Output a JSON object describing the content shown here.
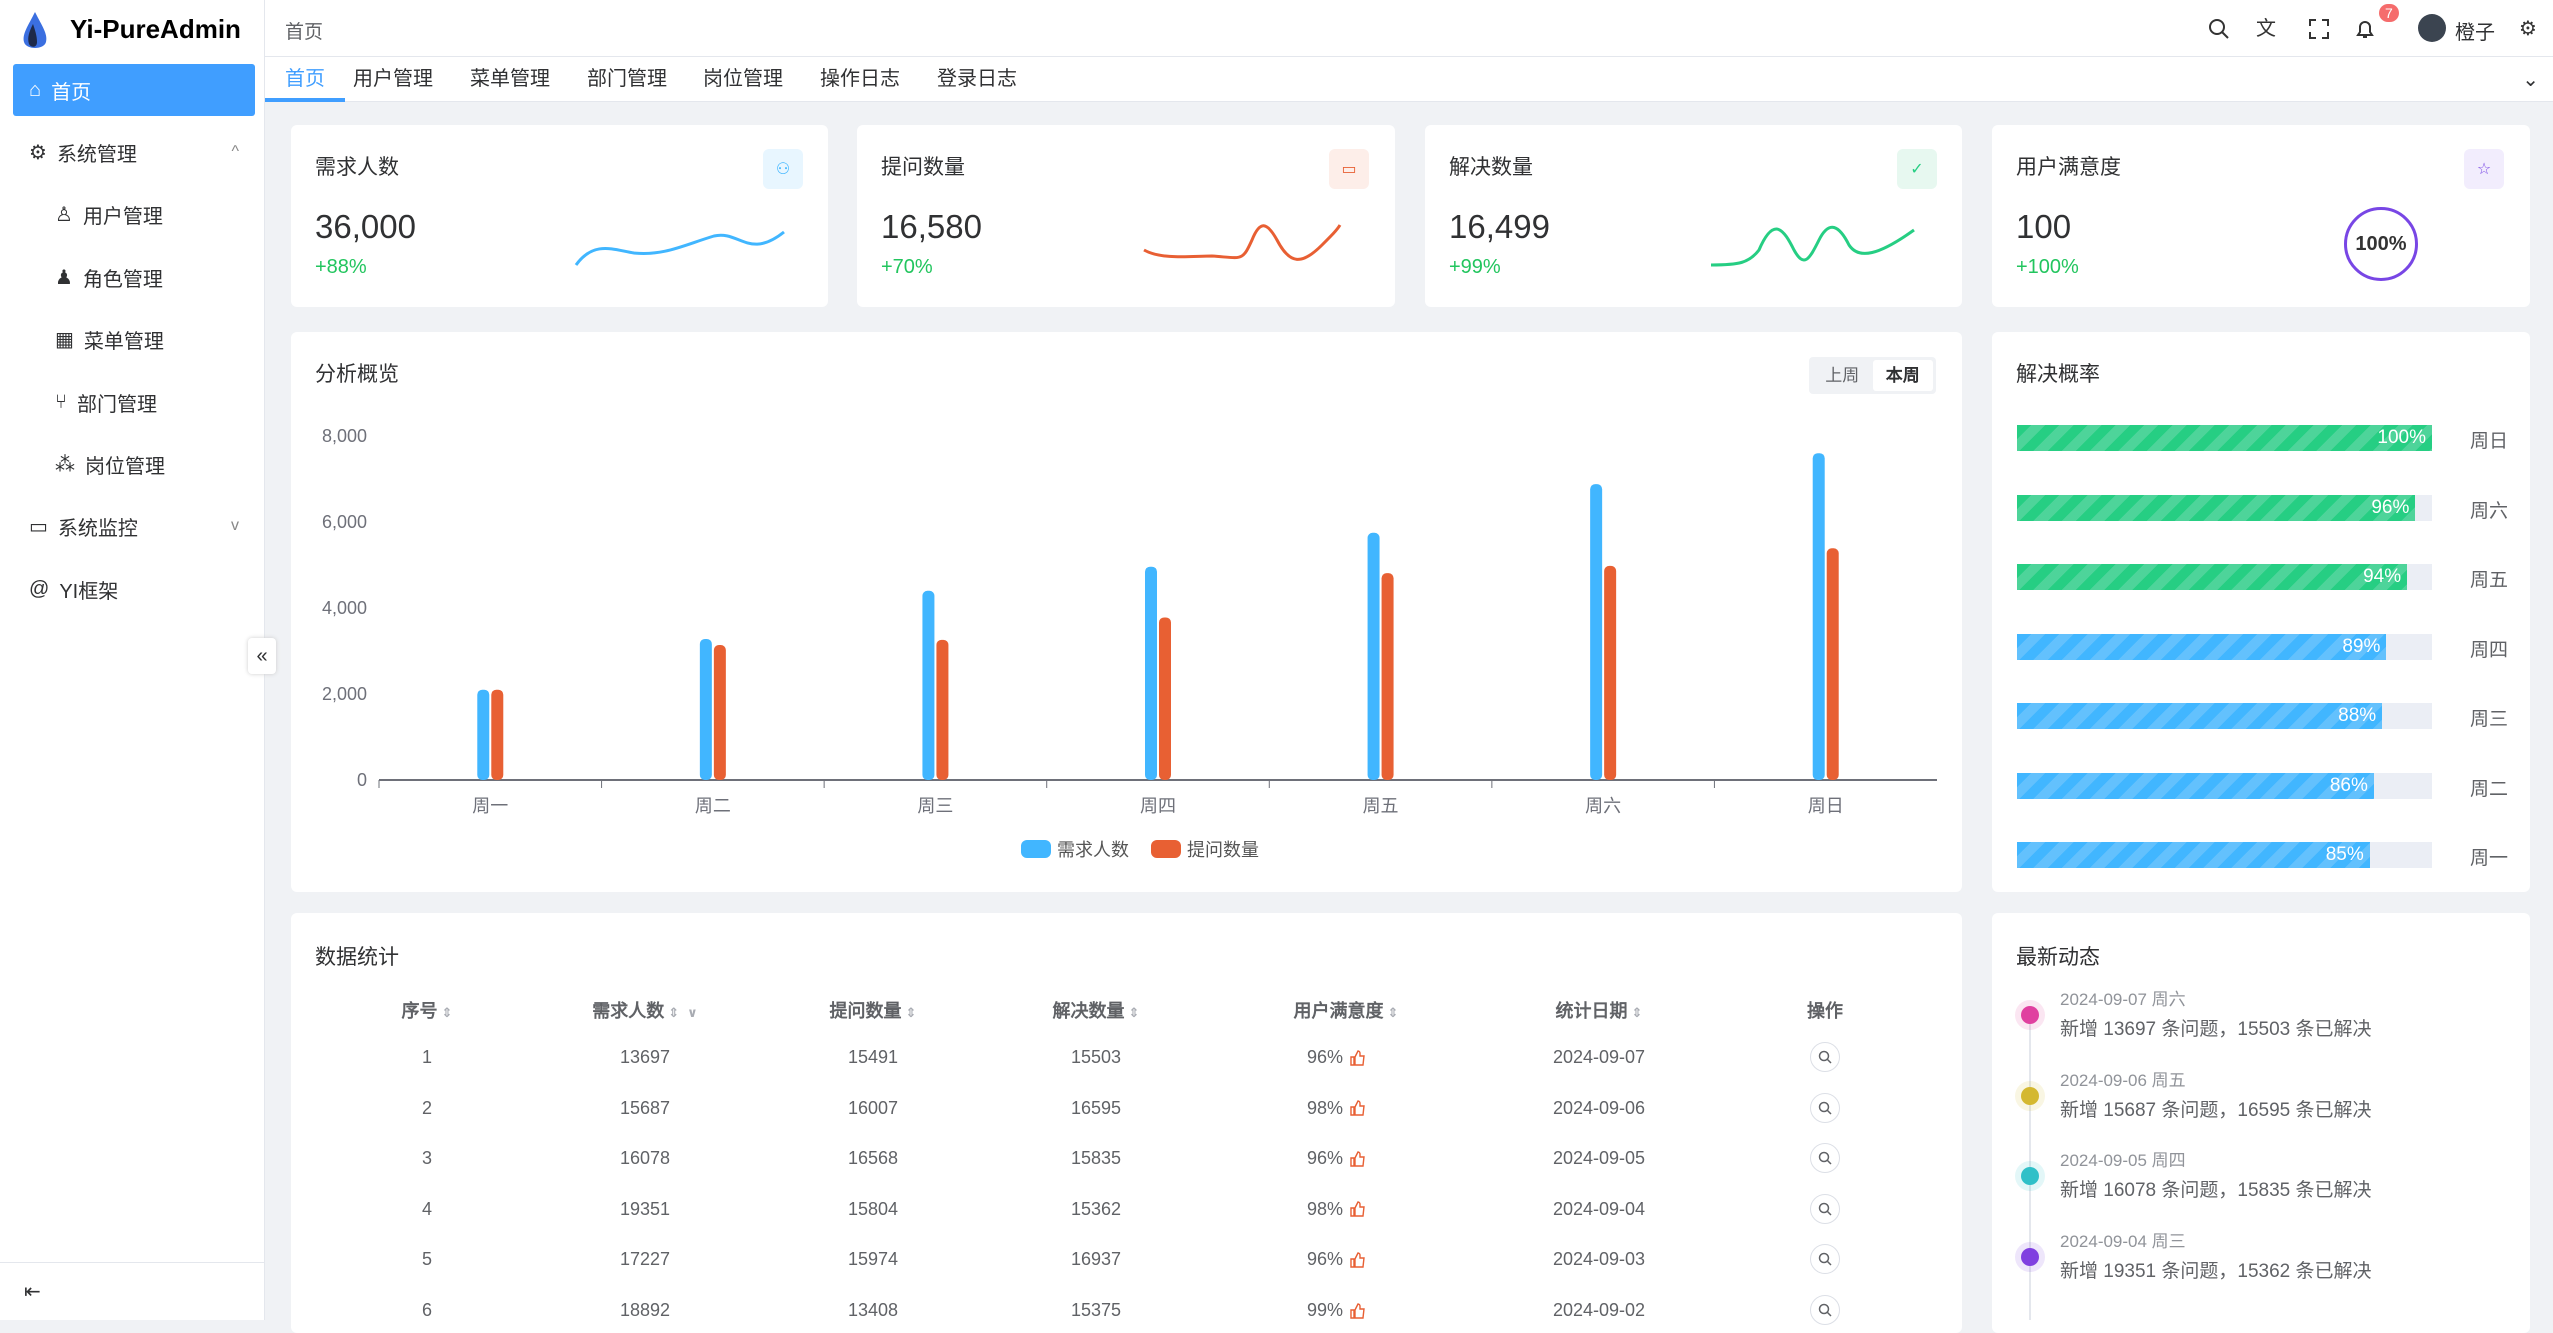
{
  "app": {
    "title": "Yi-PureAdmin"
  },
  "sidebar": {
    "items": [
      {
        "label": "首页",
        "icon": "home-icon",
        "active": true
      },
      {
        "label": "系统管理",
        "icon": "gear-icon",
        "expanded": true
      },
      {
        "label": "用户管理",
        "icon": "user-icon"
      },
      {
        "label": "角色管理",
        "icon": "role-icon"
      },
      {
        "label": "菜单管理",
        "icon": "menu-grid-icon"
      },
      {
        "label": "部门管理",
        "icon": "branch-icon"
      },
      {
        "label": "岗位管理",
        "icon": "network-icon"
      },
      {
        "label": "系统监控",
        "icon": "monitor-icon",
        "expanded": false
      },
      {
        "label": "YI框架",
        "icon": "at-icon"
      }
    ]
  },
  "header": {
    "breadcrumb": "首页",
    "notification_count": "7",
    "user_name": "橙子"
  },
  "tabs": [
    "首页",
    "用户管理",
    "菜单管理",
    "部门管理",
    "岗位管理",
    "操作日志",
    "登录日志"
  ],
  "stats": [
    {
      "title": "需求人数",
      "value": "36,000",
      "change": "+88%",
      "color": "#41b6ff"
    },
    {
      "title": "提问数量",
      "value": "16,580",
      "change": "+70%",
      "color": "#e85f33"
    },
    {
      "title": "解决数量",
      "value": "16,499",
      "change": "+99%",
      "color": "#26ce83"
    },
    {
      "title": "用户满意度",
      "value": "100",
      "change": "+100%",
      "color": "#7846e5",
      "gauge": "100%"
    }
  ],
  "overview": {
    "title": "分析概览",
    "toggle": [
      "上周",
      "本周"
    ],
    "active_toggle": "本周"
  },
  "chart_data": {
    "type": "bar",
    "categories": [
      "周一",
      "周二",
      "周三",
      "周四",
      "周五",
      "周六",
      "周日"
    ],
    "series": [
      {
        "name": "需求人数",
        "color": "#41b6ff",
        "values": [
          2100,
          3280,
          4400,
          4960,
          5750,
          6880,
          7600
        ]
      },
      {
        "name": "提问数量",
        "color": "#e86033",
        "values": [
          2100,
          3140,
          3260,
          3780,
          4810,
          4980,
          5390
        ]
      }
    ],
    "yticks": [
      "0",
      "2,000",
      "4,000",
      "6,000",
      "8,000"
    ],
    "ylim": [
      0,
      8000
    ],
    "legend": "bottom"
  },
  "resolve_rate": {
    "title": "解决概率",
    "rows": [
      {
        "day": "周日",
        "percent": 100,
        "label": "100%",
        "color": "#26ce83"
      },
      {
        "day": "周六",
        "percent": 96,
        "label": "96%",
        "color": "#26ce83"
      },
      {
        "day": "周五",
        "percent": 94,
        "label": "94%",
        "color": "#26ce83"
      },
      {
        "day": "周四",
        "percent": 89,
        "label": "89%",
        "color": "#41b6ff"
      },
      {
        "day": "周三",
        "percent": 88,
        "label": "88%",
        "color": "#41b6ff"
      },
      {
        "day": "周二",
        "percent": 86,
        "label": "86%",
        "color": "#41b6ff"
      },
      {
        "day": "周一",
        "percent": 85,
        "label": "85%",
        "color": "#41b6ff"
      }
    ]
  },
  "table": {
    "title": "数据统计",
    "columns": [
      "序号",
      "需求人数",
      "提问数量",
      "解决数量",
      "用户满意度",
      "统计日期",
      "操作"
    ],
    "rows": [
      [
        "1",
        "13697",
        "15491",
        "15503",
        "96%",
        "2024-09-07"
      ],
      [
        "2",
        "15687",
        "16007",
        "16595",
        "98%",
        "2024-09-06"
      ],
      [
        "3",
        "16078",
        "16568",
        "15835",
        "96%",
        "2024-09-05"
      ],
      [
        "4",
        "19351",
        "15804",
        "15362",
        "98%",
        "2024-09-04"
      ],
      [
        "5",
        "17227",
        "15974",
        "16937",
        "96%",
        "2024-09-03"
      ],
      [
        "6",
        "18892",
        "13408",
        "15375",
        "99%",
        "2024-09-02"
      ]
    ]
  },
  "timeline": {
    "title": "最新动态",
    "items": [
      {
        "date": "2024-09-07 周六",
        "text": "新增 13697 条问题，15503 条已解决",
        "color": "#e040a0"
      },
      {
        "date": "2024-09-06 周五",
        "text": "新增 15687 条问题，16595 条已解决",
        "color": "#d4b830"
      },
      {
        "date": "2024-09-05 周四",
        "text": "新增 16078 条问题，15835 条已解决",
        "color": "#30c0c8"
      },
      {
        "date": "2024-09-04 周三",
        "text": "新增 19351 条问题，15362 条已解决",
        "color": "#8040e0"
      }
    ]
  }
}
